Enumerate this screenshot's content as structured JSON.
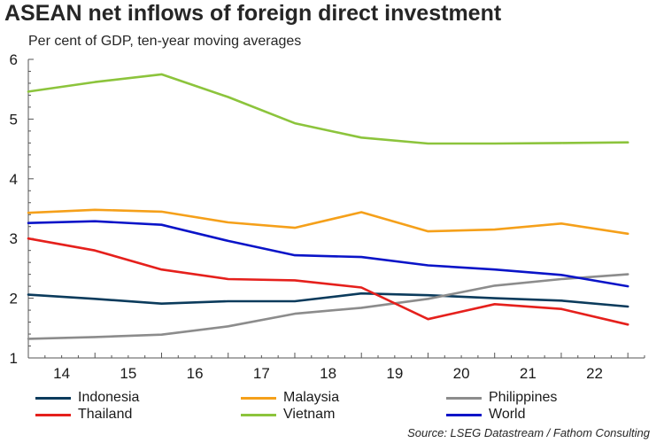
{
  "title": "ASEAN net inflows of foreign direct investment",
  "subtitle": "Per cent of GDP, ten-year moving averages",
  "source": "Source: LSEG Datastream / Fathom Consulting",
  "chart_data": {
    "type": "line",
    "title": "ASEAN net inflows of foreign direct investment",
    "subtitle": "Per cent of GDP, ten-year moving averages",
    "xlabel": "",
    "ylabel": "",
    "categories": [
      "14",
      "15",
      "16",
      "17",
      "18",
      "19",
      "20",
      "21",
      "22"
    ],
    "x": [
      13.5,
      14.5,
      15.5,
      16.5,
      17.5,
      18.5,
      19.5,
      20.5,
      21.5,
      22.5
    ],
    "xlim": [
      13.5,
      22.75
    ],
    "ylim": [
      1,
      6
    ],
    "yticks": [
      "1",
      "2",
      "3",
      "4",
      "5",
      "6"
    ],
    "grid": false,
    "legend_position": "bottom",
    "series": [
      {
        "name": "Indonesia",
        "color": "#0b3b5c",
        "values": [
          2.06,
          1.99,
          1.91,
          1.95,
          1.95,
          2.08,
          2.05,
          2.0,
          1.96,
          1.86
        ]
      },
      {
        "name": "Malaysia",
        "color": "#f5a01a",
        "values": [
          3.43,
          3.48,
          3.45,
          3.27,
          3.18,
          3.44,
          3.12,
          3.15,
          3.25,
          3.08
        ]
      },
      {
        "name": "Philippines",
        "color": "#8c8c8c",
        "values": [
          1.32,
          1.35,
          1.39,
          1.53,
          1.74,
          1.84,
          1.99,
          2.21,
          2.32,
          2.4
        ]
      },
      {
        "name": "Thailand",
        "color": "#e5201c",
        "values": [
          3.0,
          2.8,
          2.48,
          2.32,
          2.3,
          2.18,
          1.65,
          1.9,
          1.82,
          1.56
        ]
      },
      {
        "name": "Vietnam",
        "color": "#8cc43c",
        "values": [
          5.46,
          5.62,
          5.75,
          5.37,
          4.93,
          4.69,
          4.59,
          4.59,
          4.6,
          4.61
        ]
      },
      {
        "name": "World",
        "color": "#0a14c8",
        "values": [
          3.26,
          3.29,
          3.23,
          2.96,
          2.72,
          2.69,
          2.55,
          2.48,
          2.39,
          2.2
        ]
      }
    ]
  }
}
